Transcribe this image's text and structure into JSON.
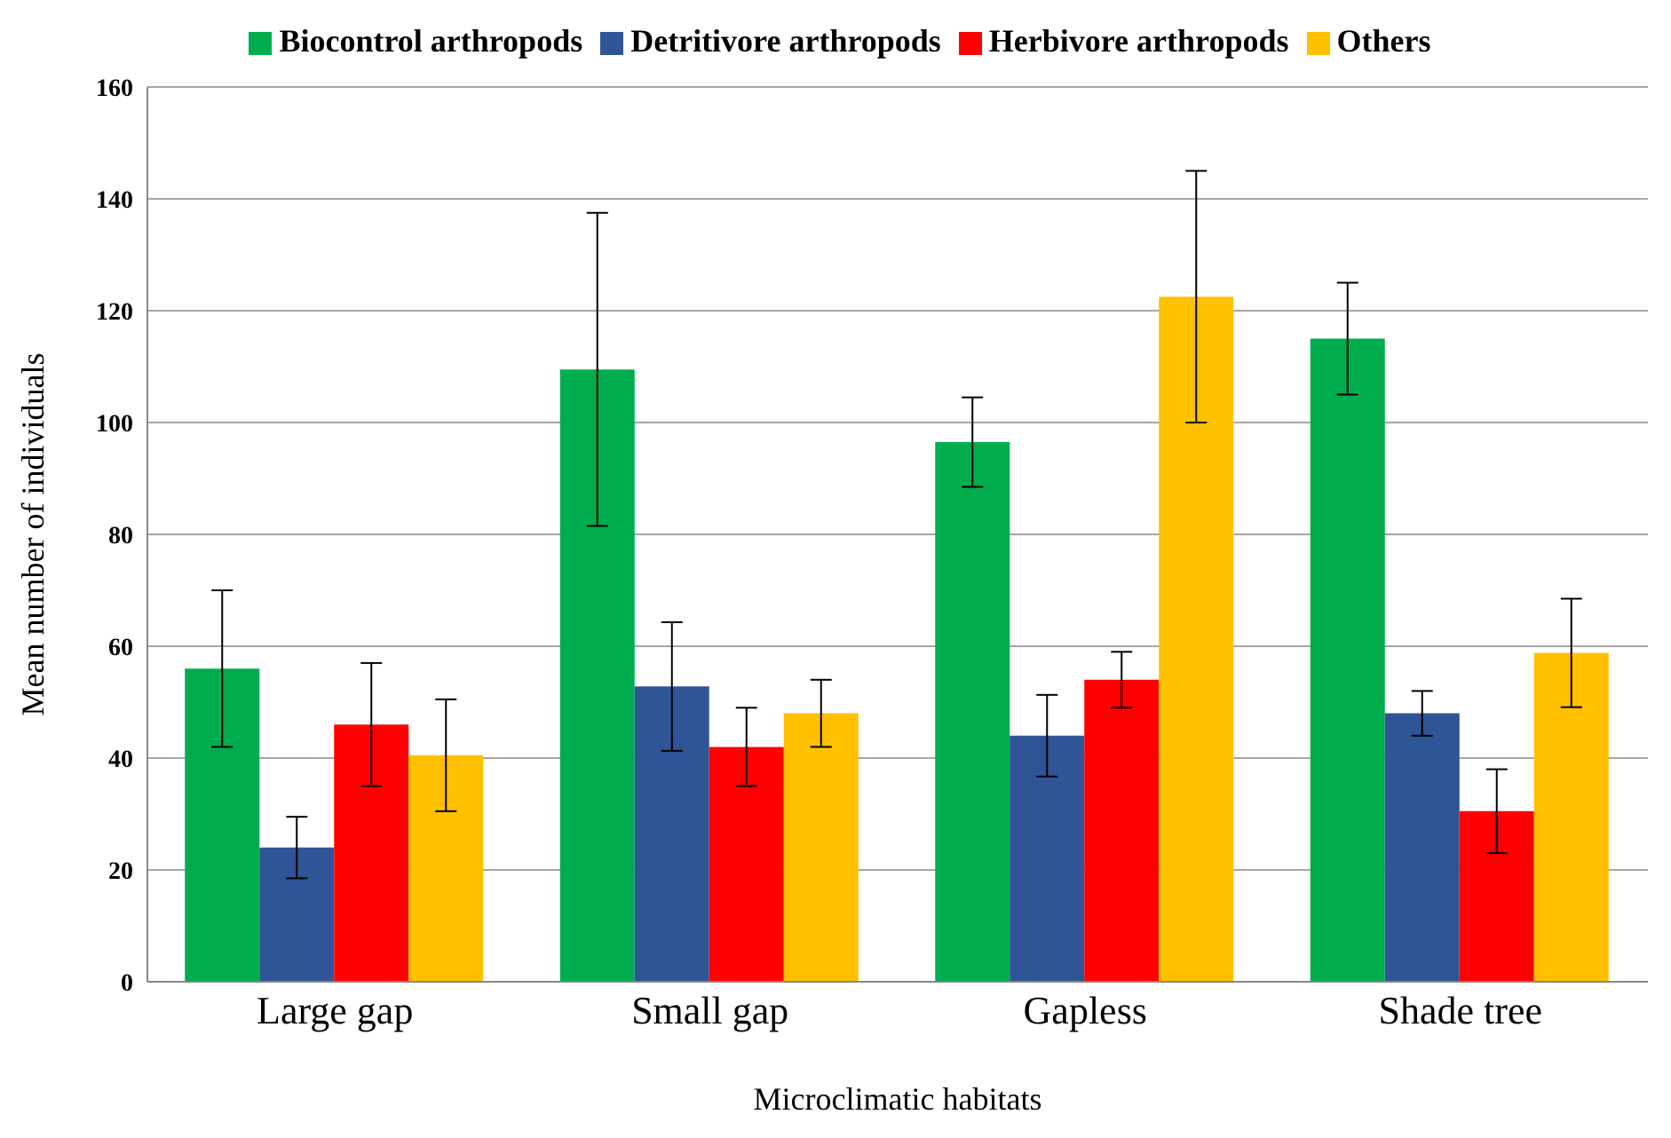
{
  "chart_data": {
    "type": "bar",
    "xlabel": "Microclimatic habitats",
    "ylabel": "Mean number of individuals",
    "categories": [
      "Large gap",
      "Small gap",
      "Gapless",
      "Shade tree"
    ],
    "series": [
      {
        "name": "Biocontrol arthropods",
        "color": "#00ad4e",
        "values": [
          56,
          109.5,
          96.5,
          115
        ],
        "errors": [
          14,
          28,
          8,
          10
        ]
      },
      {
        "name": "Detritivore arthropods",
        "color": "#2f5597",
        "values": [
          24,
          52.8,
          44,
          48
        ],
        "errors": [
          5.5,
          11.5,
          7.3,
          4
        ]
      },
      {
        "name": "Herbivore arthropods",
        "color": "#ff0000",
        "values": [
          46,
          42,
          54,
          30.5
        ],
        "errors": [
          11,
          7,
          5,
          7.5
        ]
      },
      {
        "name": "Others",
        "color": "#ffc000",
        "values": [
          40.5,
          48,
          122.5,
          58.8
        ],
        "errors": [
          10,
          6,
          22.5,
          9.7
        ]
      }
    ],
    "ylim": [
      0,
      160
    ],
    "yticks": [
      0,
      20,
      40,
      60,
      80,
      100,
      120,
      140,
      160
    ],
    "grid": "y",
    "legend": "top"
  }
}
